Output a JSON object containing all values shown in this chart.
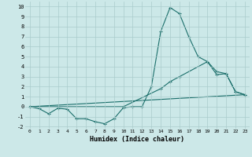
{
  "title": "",
  "xlabel": "Humidex (Indice chaleur)",
  "bg_color": "#cce8e8",
  "grid_color": "#aacccc",
  "line_color": "#1a6e6a",
  "xlim": [
    -0.5,
    23.5
  ],
  "ylim": [
    -2.2,
    10.5
  ],
  "xticks": [
    0,
    1,
    2,
    3,
    4,
    5,
    6,
    7,
    8,
    9,
    10,
    11,
    12,
    13,
    14,
    15,
    16,
    17,
    18,
    19,
    20,
    21,
    22,
    23
  ],
  "yticks": [
    -2,
    -1,
    0,
    1,
    2,
    3,
    4,
    5,
    6,
    7,
    8,
    9,
    10
  ],
  "series": [
    {
      "x": [
        0,
        1,
        2,
        3,
        4,
        5,
        6,
        7,
        8,
        9,
        10,
        11,
        12,
        13,
        14,
        15,
        16,
        17,
        18,
        19,
        20,
        21,
        22,
        23
      ],
      "y": [
        0,
        -0.2,
        -0.7,
        -0.15,
        -0.25,
        -1.2,
        -1.2,
        -1.5,
        -1.7,
        -1.2,
        -0.1,
        0.0,
        0.0,
        2.0,
        7.5,
        9.9,
        9.3,
        7.0,
        5.0,
        4.5,
        3.2,
        3.3,
        1.5,
        1.2
      ]
    },
    {
      "x": [
        0,
        10,
        14,
        15,
        16,
        19,
        20,
        21,
        22,
        23
      ],
      "y": [
        0,
        0.0,
        1.8,
        2.5,
        3.0,
        4.5,
        3.5,
        3.3,
        1.5,
        1.2
      ]
    },
    {
      "x": [
        0,
        23
      ],
      "y": [
        0,
        1.2
      ]
    }
  ]
}
